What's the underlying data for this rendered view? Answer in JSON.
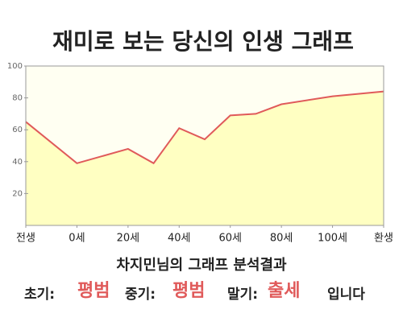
{
  "chart_data": {
    "type": "area-line",
    "title": "재미로 보는 당신의 인생 그래프",
    "x": [
      -20,
      0,
      20,
      30,
      40,
      50,
      60,
      70,
      80,
      100,
      120
    ],
    "values": [
      65,
      39,
      48,
      39,
      61,
      54,
      69,
      70,
      76,
      81,
      84
    ],
    "color": "#e05a5a",
    "fill": "#ffffc2",
    "background": "#fffff2",
    "xlim": [
      -20,
      120
    ],
    "xticks": [
      {
        "value": -20,
        "label": "전생"
      },
      {
        "value": 0,
        "label": "0세"
      },
      {
        "value": 20,
        "label": "20세"
      },
      {
        "value": 40,
        "label": "40세"
      },
      {
        "value": 60,
        "label": "60세"
      },
      {
        "value": 80,
        "label": "80세"
      },
      {
        "value": 100,
        "label": "100세"
      },
      {
        "value": 120,
        "label": "환생"
      }
    ],
    "ylim": [
      0,
      100
    ],
    "yticks": [
      20,
      40,
      60,
      80,
      100
    ],
    "grid": false
  },
  "analysis": {
    "heading": "차지민님의 그래프 분석결과",
    "early_label": "초기:",
    "early": "평범",
    "middle_label": "중기:",
    "middle": "평범",
    "late_label": "말기:",
    "late": "출세",
    "ending": "입니다"
  }
}
